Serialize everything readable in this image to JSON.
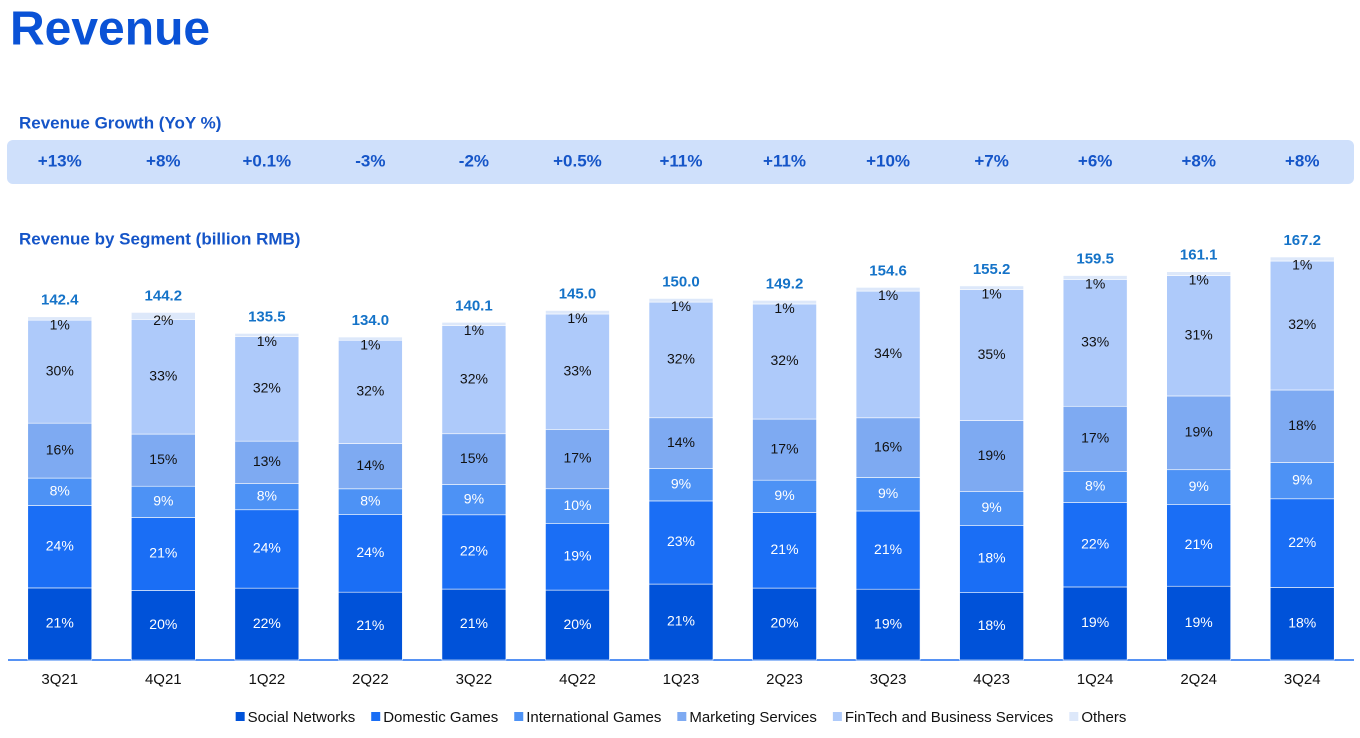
{
  "chart_data": {
    "type": "bar",
    "title": "Revenue",
    "growth": {
      "title": "Revenue Growth (YoY %)",
      "values": [
        13,
        8,
        0.1,
        -3,
        -2,
        0.5,
        11,
        11,
        10,
        7,
        6,
        8,
        8
      ],
      "value_labels": [
        "+13%",
        "+8%",
        "+0.1%",
        "-3%",
        "-2%",
        "+0.5%",
        "+11%",
        "+11%",
        "+10%",
        "+7%",
        "+6%",
        "+8%",
        "+8%"
      ]
    },
    "subtitle": "Revenue by Segment (billion RMB)",
    "categories": [
      "3Q21",
      "4Q21",
      "1Q22",
      "2Q22",
      "3Q22",
      "4Q22",
      "1Q23",
      "2Q23",
      "3Q23",
      "4Q23",
      "1Q24",
      "2Q24",
      "3Q24"
    ],
    "totals": {
      "values": [
        142.4,
        144.2,
        135.5,
        134.0,
        140.1,
        145.0,
        150.0,
        149.2,
        154.6,
        155.2,
        159.5,
        161.1,
        167.2
      ],
      "value_labels": [
        "142.4",
        "144.2",
        "135.5",
        "134.0",
        "140.1",
        "145.0",
        "150.0",
        "149.2",
        "154.6",
        "155.2",
        "159.5",
        "161.1",
        "167.2"
      ]
    },
    "series": [
      {
        "name": "Social Networks",
        "color": "#0052d9",
        "values": [
          21,
          20,
          22,
          21,
          21,
          20,
          21,
          20,
          19,
          18,
          19,
          19,
          18
        ],
        "value_labels": [
          "21%",
          "20%",
          "22%",
          "21%",
          "21%",
          "20%",
          "21%",
          "20%",
          "19%",
          "18%",
          "19%",
          "19%",
          "18%"
        ]
      },
      {
        "name": "Domestic Games",
        "color": "#1a6ef5",
        "values": [
          24,
          21,
          24,
          24,
          22,
          19,
          23,
          21,
          21,
          18,
          22,
          21,
          22
        ],
        "value_labels": [
          "24%",
          "21%",
          "24%",
          "24%",
          "22%",
          "19%",
          "23%",
          "21%",
          "21%",
          "18%",
          "22%",
          "21%",
          "22%"
        ]
      },
      {
        "name": "International Games",
        "color": "#4d92f5",
        "values": [
          8,
          9,
          8,
          8,
          9,
          10,
          9,
          9,
          9,
          9,
          8,
          9,
          9
        ],
        "value_labels": [
          "8%",
          "9%",
          "8%",
          "8%",
          "9%",
          "10%",
          "9%",
          "9%",
          "9%",
          "9%",
          "8%",
          "9%",
          "9%"
        ]
      },
      {
        "name": "Marketing Services",
        "color": "#7eaaf2",
        "values": [
          16,
          15,
          13,
          14,
          15,
          17,
          14,
          17,
          16,
          19,
          17,
          19,
          18
        ],
        "value_labels": [
          "16%",
          "15%",
          "13%",
          "14%",
          "15%",
          "17%",
          "14%",
          "17%",
          "16%",
          "19%",
          "17%",
          "19%",
          "18%"
        ]
      },
      {
        "name": "FinTech and Business Services",
        "color": "#aecafa",
        "values": [
          30,
          33,
          32,
          32,
          32,
          33,
          32,
          32,
          34,
          35,
          33,
          31,
          32
        ],
        "value_labels": [
          "30%",
          "33%",
          "32%",
          "32%",
          "32%",
          "33%",
          "32%",
          "32%",
          "34%",
          "35%",
          "33%",
          "31%",
          "32%"
        ]
      },
      {
        "name": "Others",
        "color": "#dde8fa",
        "values": [
          1,
          2,
          1,
          1,
          1,
          1,
          1,
          1,
          1,
          1,
          1,
          1,
          1
        ],
        "value_labels": [
          "1%",
          "2%",
          "1%",
          "1%",
          "1%",
          "1%",
          "1%",
          "1%",
          "1%",
          "1%",
          "1%",
          "1%",
          "1%"
        ]
      }
    ]
  }
}
